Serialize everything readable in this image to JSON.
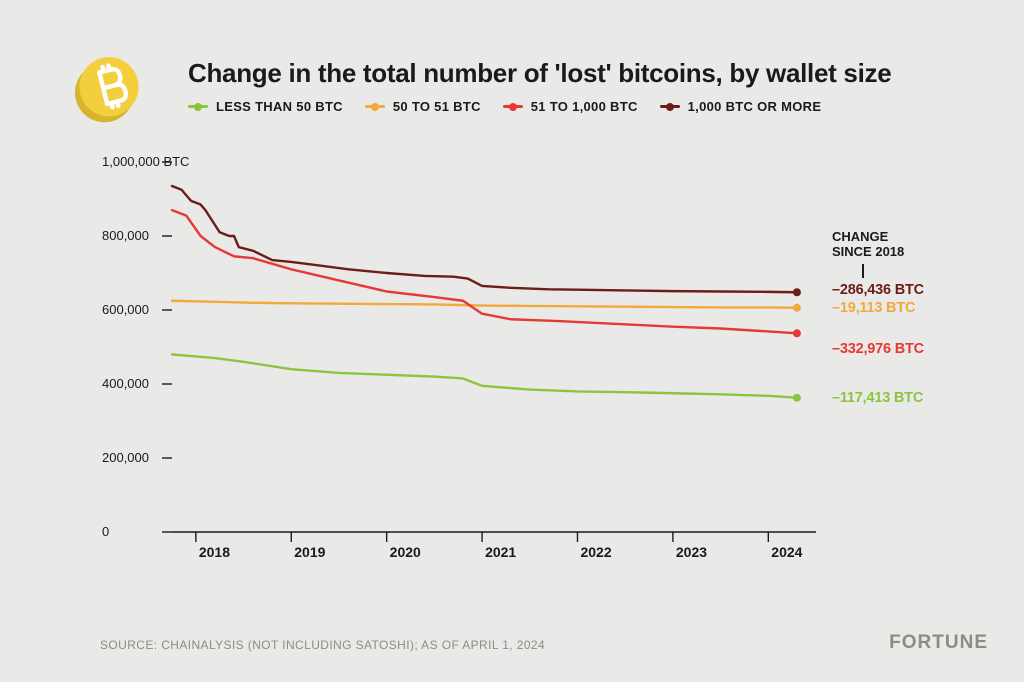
{
  "title": "Change in the total number of 'lost' bitcoins, by wallet size",
  "legend": {
    "items": [
      {
        "label": "LESS THAN 50 BTC",
        "color": "#8bc53f"
      },
      {
        "label": "50 TO 51 BTC",
        "color": "#f2a83b"
      },
      {
        "label": "51 TO 1,000 BTC",
        "color": "#e53935"
      },
      {
        "label": "1,000 BTC OR MORE",
        "color": "#6b1d17"
      }
    ]
  },
  "chart": {
    "type": "line",
    "background_color": "#e9eae7",
    "axis_color": "#1a1a1a",
    "line_width": 2.4,
    "marker_radius": 4,
    "x": {
      "min": 2017.75,
      "max": 2024.5,
      "ticks": [
        2018,
        2019,
        2020,
        2021,
        2022,
        2023,
        2024
      ],
      "tick_labels": [
        "2018",
        "2019",
        "2020",
        "2021",
        "2022",
        "2023",
        "2024"
      ],
      "tick_len": 10
    },
    "y": {
      "min": 0,
      "max": 1000000,
      "ticks": [
        0,
        200000,
        400000,
        600000,
        800000,
        1000000
      ],
      "tick_labels": [
        "0",
        "200,000",
        "400,000",
        "600,000",
        "800,000",
        "1,000,000 BTC"
      ],
      "tick_len": 10
    },
    "series": [
      {
        "name": "less-than-50",
        "color": "#8bc53f",
        "end_label": "–117,413 BTC",
        "points": [
          [
            2017.75,
            480000
          ],
          [
            2018.2,
            470000
          ],
          [
            2018.5,
            460000
          ],
          [
            2019.0,
            440000
          ],
          [
            2019.5,
            430000
          ],
          [
            2020.0,
            425000
          ],
          [
            2020.5,
            420000
          ],
          [
            2020.8,
            415000
          ],
          [
            2021.0,
            395000
          ],
          [
            2021.5,
            385000
          ],
          [
            2022.0,
            380000
          ],
          [
            2022.5,
            378000
          ],
          [
            2023.0,
            375000
          ],
          [
            2023.5,
            372000
          ],
          [
            2024.0,
            368000
          ],
          [
            2024.3,
            363000
          ]
        ]
      },
      {
        "name": "50-to-51",
        "color": "#f2a83b",
        "end_label": "–19,113 BTC",
        "points": [
          [
            2017.75,
            625000
          ],
          [
            2018.2,
            622000
          ],
          [
            2018.5,
            620000
          ],
          [
            2019.0,
            618000
          ],
          [
            2019.5,
            617000
          ],
          [
            2020.0,
            616000
          ],
          [
            2020.5,
            615000
          ],
          [
            2021.0,
            612000
          ],
          [
            2021.5,
            611000
          ],
          [
            2022.0,
            610000
          ],
          [
            2022.5,
            609000
          ],
          [
            2023.0,
            608000
          ],
          [
            2023.5,
            607000
          ],
          [
            2024.0,
            607000
          ],
          [
            2024.3,
            606000
          ]
        ]
      },
      {
        "name": "51-to-1000",
        "color": "#e53935",
        "end_label": "–332,976 BTC",
        "points": [
          [
            2017.75,
            870000
          ],
          [
            2017.9,
            855000
          ],
          [
            2018.05,
            800000
          ],
          [
            2018.2,
            770000
          ],
          [
            2018.4,
            745000
          ],
          [
            2018.6,
            740000
          ],
          [
            2019.0,
            710000
          ],
          [
            2019.5,
            680000
          ],
          [
            2020.0,
            650000
          ],
          [
            2020.5,
            635000
          ],
          [
            2020.8,
            625000
          ],
          [
            2021.0,
            590000
          ],
          [
            2021.3,
            575000
          ],
          [
            2021.8,
            570000
          ],
          [
            2022.2,
            565000
          ],
          [
            2022.6,
            560000
          ],
          [
            2023.0,
            555000
          ],
          [
            2023.5,
            550000
          ],
          [
            2024.0,
            542000
          ],
          [
            2024.3,
            537000
          ]
        ]
      },
      {
        "name": "1000-or-more",
        "color": "#6b1d17",
        "end_label": "–286,436 BTC",
        "points": [
          [
            2017.75,
            935000
          ],
          [
            2017.85,
            925000
          ],
          [
            2017.95,
            895000
          ],
          [
            2018.05,
            885000
          ],
          [
            2018.1,
            870000
          ],
          [
            2018.25,
            810000
          ],
          [
            2018.35,
            800000
          ],
          [
            2018.4,
            800000
          ],
          [
            2018.45,
            770000
          ],
          [
            2018.6,
            760000
          ],
          [
            2018.8,
            735000
          ],
          [
            2019.0,
            730000
          ],
          [
            2019.3,
            720000
          ],
          [
            2019.6,
            710000
          ],
          [
            2020.0,
            700000
          ],
          [
            2020.4,
            692000
          ],
          [
            2020.7,
            690000
          ],
          [
            2020.85,
            685000
          ],
          [
            2021.0,
            665000
          ],
          [
            2021.3,
            660000
          ],
          [
            2021.7,
            656000
          ],
          [
            2022.0,
            655000
          ],
          [
            2022.5,
            653000
          ],
          [
            2023.0,
            651000
          ],
          [
            2023.5,
            650000
          ],
          [
            2024.0,
            649000
          ],
          [
            2024.3,
            648000
          ]
        ]
      }
    ]
  },
  "change_header": {
    "line1": "CHANGE",
    "line2": "SINCE 2018"
  },
  "source": "SOURCE: CHAINALYSIS (NOT INCLUDING SATOSHI); AS OF APRIL 1, 2024",
  "brand": "FORTUNE",
  "icon": {
    "coin_fill": "#f4cf3d",
    "coin_edge": "#d6b42d",
    "symbol_fill": "#ffffff"
  }
}
